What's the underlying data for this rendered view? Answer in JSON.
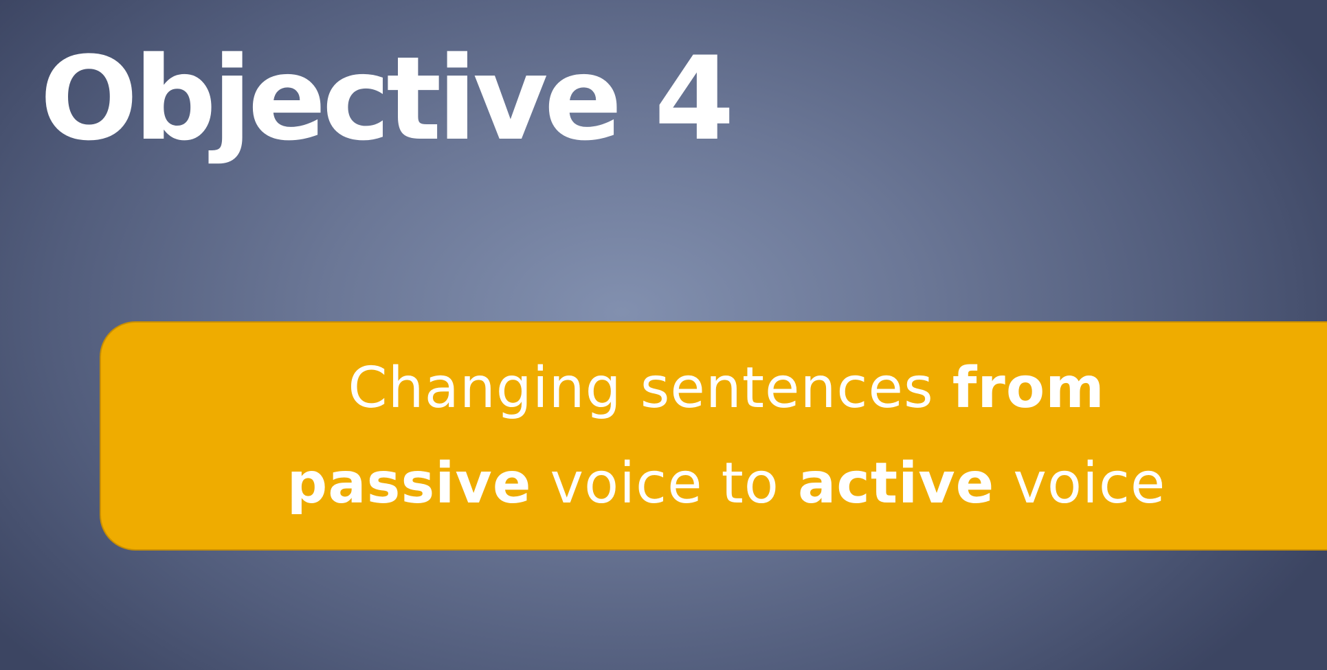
{
  "slide": {
    "title": "Objective 4",
    "banner": {
      "segments": [
        {
          "text": "Changing sentences ",
          "bold": false
        },
        {
          "text": "from",
          "bold": true
        },
        {
          "text": "passive",
          "bold": true
        },
        {
          "text": " voice to ",
          "bold": false
        },
        {
          "text": "active",
          "bold": true
        },
        {
          "text": " voice",
          "bold": false
        }
      ]
    }
  },
  "colors": {
    "background_center": "#8290af",
    "background_edge": "#3c4562",
    "banner": "#efac00",
    "text": "#ffffff"
  }
}
